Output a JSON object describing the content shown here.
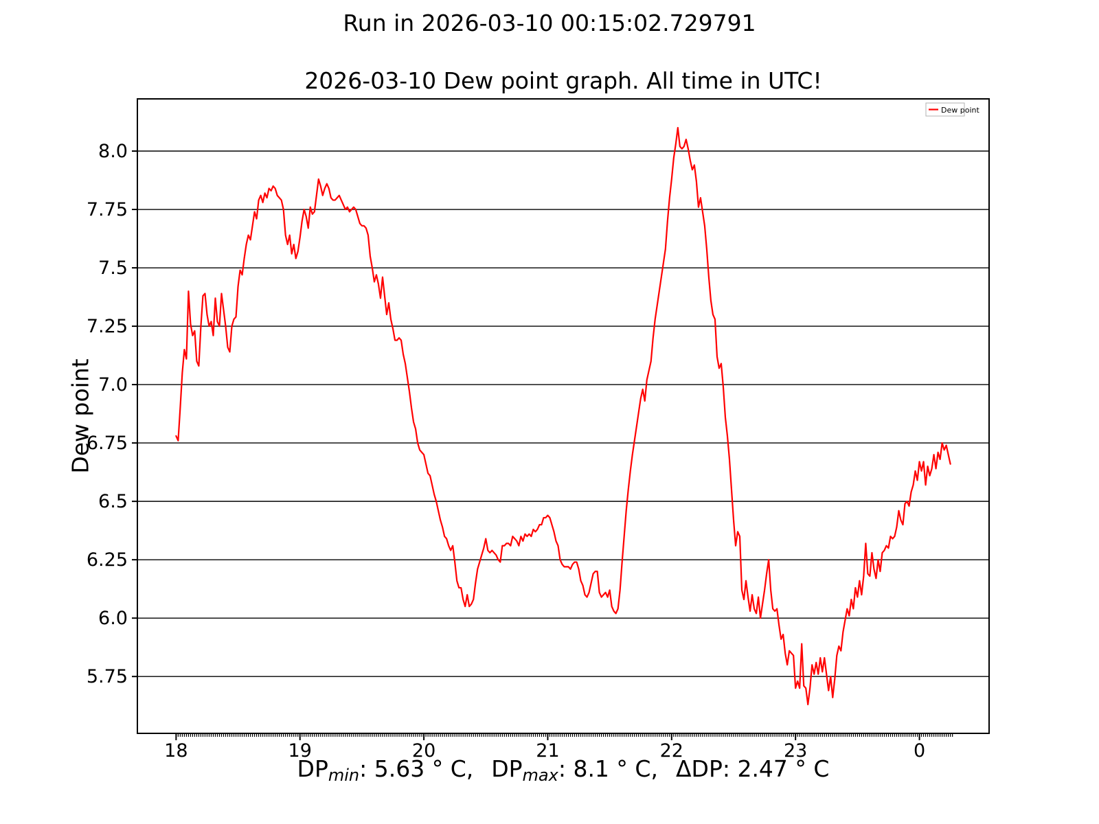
{
  "suptitle": "Run in 2026-03-10 00:15:02.729791",
  "footer": {
    "dp1": "DP",
    "min_sub": "min",
    "min_text": ": 5.63 ° C,",
    "dp2": "DP",
    "max_sub": "max",
    "max_text": ": 8.1 ° C,",
    "delta_text": "ΔDP: 2.47 ° C"
  },
  "chart_data": {
    "type": "line",
    "title": "2026-03-10 Dew point graph. All time in UTC!",
    "ylabel": "Dew point",
    "xlabel": "DP_min: 5.63 °C,  DP_max: 8.1 °C,  ΔDP: 2.47 °C",
    "legend": {
      "label": "Dew point",
      "position": "upper right"
    },
    "line_color": "#ff0000",
    "grid": true,
    "grid_color": "#000000",
    "background": "#ffffff",
    "x_start_hour": 18,
    "x_interval_minutes": 1,
    "xlim_minutes": [
      -18.75,
      393.75
    ],
    "ylim": [
      5.5065,
      8.2235
    ],
    "minor_tick_every_minutes": 1,
    "minor_tick_end_minute": 376,
    "x_ticks": [
      {
        "label": "18",
        "minute": 0
      },
      {
        "label": "19",
        "minute": 60
      },
      {
        "label": "20",
        "minute": 120
      },
      {
        "label": "21",
        "minute": 180
      },
      {
        "label": "22",
        "minute": 240
      },
      {
        "label": "23",
        "minute": 300
      },
      {
        "label": "0",
        "minute": 360
      }
    ],
    "y_ticks": [
      {
        "label": "8.0",
        "value": 8.0
      },
      {
        "label": "7.75",
        "value": 7.75
      },
      {
        "label": "7.5",
        "value": 7.5
      },
      {
        "label": "7.25",
        "value": 7.25
      },
      {
        "label": "7.0",
        "value": 7.0
      },
      {
        "label": "6.75",
        "value": 6.75
      },
      {
        "label": "6.5",
        "value": 6.5
      },
      {
        "label": "6.25",
        "value": 6.25
      },
      {
        "label": "6.0",
        "value": 6.0
      },
      {
        "label": "5.75",
        "value": 5.75
      }
    ],
    "stats": {
      "dp_min": 5.63,
      "dp_max": 8.1,
      "dp_delta": 2.47
    },
    "values": [
      6.78,
      6.76,
      6.9,
      7.05,
      7.15,
      7.11,
      7.4,
      7.26,
      7.21,
      7.23,
      7.1,
      7.08,
      7.25,
      7.38,
      7.39,
      7.3,
      7.25,
      7.27,
      7.21,
      7.37,
      7.27,
      7.25,
      7.39,
      7.32,
      7.25,
      7.16,
      7.14,
      7.25,
      7.28,
      7.29,
      7.42,
      7.49,
      7.47,
      7.54,
      7.6,
      7.64,
      7.62,
      7.68,
      7.74,
      7.71,
      7.79,
      7.81,
      7.78,
      7.82,
      7.8,
      7.84,
      7.83,
      7.85,
      7.84,
      7.81,
      7.8,
      7.79,
      7.75,
      7.64,
      7.6,
      7.64,
      7.56,
      7.6,
      7.54,
      7.57,
      7.63,
      7.7,
      7.75,
      7.72,
      7.67,
      7.76,
      7.73,
      7.74,
      7.81,
      7.88,
      7.85,
      7.81,
      7.84,
      7.86,
      7.84,
      7.8,
      7.79,
      7.79,
      7.8,
      7.81,
      7.79,
      7.77,
      7.75,
      7.76,
      7.74,
      7.75,
      7.76,
      7.75,
      7.72,
      7.69,
      7.68,
      7.68,
      7.67,
      7.64,
      7.55,
      7.5,
      7.44,
      7.47,
      7.43,
      7.37,
      7.46,
      7.38,
      7.3,
      7.35,
      7.28,
      7.24,
      7.19,
      7.19,
      7.2,
      7.19,
      7.13,
      7.09,
      7.03,
      6.97,
      6.9,
      6.84,
      6.81,
      6.75,
      6.72,
      6.71,
      6.7,
      6.66,
      6.62,
      6.61,
      6.57,
      6.53,
      6.5,
      6.46,
      6.42,
      6.39,
      6.35,
      6.34,
      6.31,
      6.29,
      6.31,
      6.24,
      6.16,
      6.13,
      6.13,
      6.08,
      6.05,
      6.1,
      6.05,
      6.06,
      6.08,
      6.15,
      6.21,
      6.24,
      6.27,
      6.3,
      6.34,
      6.29,
      6.28,
      6.29,
      6.28,
      6.27,
      6.25,
      6.24,
      6.31,
      6.31,
      6.32,
      6.32,
      6.31,
      6.35,
      6.34,
      6.33,
      6.31,
      6.35,
      6.33,
      6.36,
      6.35,
      6.36,
      6.35,
      6.38,
      6.37,
      6.38,
      6.4,
      6.4,
      6.43,
      6.43,
      6.44,
      6.43,
      6.4,
      6.37,
      6.33,
      6.31,
      6.25,
      6.23,
      6.22,
      6.22,
      6.22,
      6.21,
      6.23,
      6.24,
      6.24,
      6.21,
      6.16,
      6.14,
      6.1,
      6.09,
      6.11,
      6.15,
      6.19,
      6.2,
      6.2,
      6.11,
      6.09,
      6.1,
      6.11,
      6.09,
      6.12,
      6.05,
      6.03,
      6.02,
      6.04,
      6.12,
      6.24,
      6.35,
      6.46,
      6.55,
      6.63,
      6.7,
      6.76,
      6.82,
      6.88,
      6.94,
      6.98,
      6.93,
      7.02,
      7.06,
      7.1,
      7.2,
      7.28,
      7.34,
      7.4,
      7.46,
      7.52,
      7.58,
      7.7,
      7.8,
      7.88,
      7.97,
      8.03,
      8.1,
      8.02,
      8.01,
      8.02,
      8.05,
      8.01,
      7.96,
      7.92,
      7.94,
      7.87,
      7.76,
      7.8,
      7.74,
      7.68,
      7.58,
      7.46,
      7.36,
      7.3,
      7.28,
      7.12,
      7.07,
      7.09,
      6.99,
      6.86,
      6.78,
      6.68,
      6.55,
      6.42,
      6.31,
      6.37,
      6.35,
      6.12,
      6.08,
      6.16,
      6.09,
      6.03,
      6.1,
      6.04,
      6.02,
      6.09,
      6.0,
      6.06,
      6.12,
      6.19,
      6.25,
      6.12,
      6.04,
      6.03,
      6.04,
      5.97,
      5.91,
      5.93,
      5.85,
      5.8,
      5.86,
      5.85,
      5.84,
      5.7,
      5.73,
      5.7,
      5.89,
      5.71,
      5.7,
      5.63,
      5.7,
      5.8,
      5.76,
      5.81,
      5.76,
      5.83,
      5.77,
      5.83,
      5.76,
      5.69,
      5.75,
      5.66,
      5.74,
      5.84,
      5.88,
      5.86,
      5.94,
      5.99,
      6.04,
      6.01,
      6.08,
      6.04,
      6.13,
      6.09,
      6.16,
      6.1,
      6.18,
      6.32,
      6.19,
      6.18,
      6.28,
      6.21,
      6.17,
      6.25,
      6.2,
      6.28,
      6.29,
      6.31,
      6.3,
      6.35,
      6.34,
      6.35,
      6.39,
      6.46,
      6.42,
      6.4,
      6.49,
      6.5,
      6.48,
      6.54,
      6.57,
      6.63,
      6.59,
      6.67,
      6.63,
      6.67,
      6.57,
      6.65,
      6.61,
      6.64,
      6.7,
      6.64,
      6.71,
      6.68,
      6.75,
      6.72,
      6.74,
      6.7,
      6.66
    ]
  }
}
